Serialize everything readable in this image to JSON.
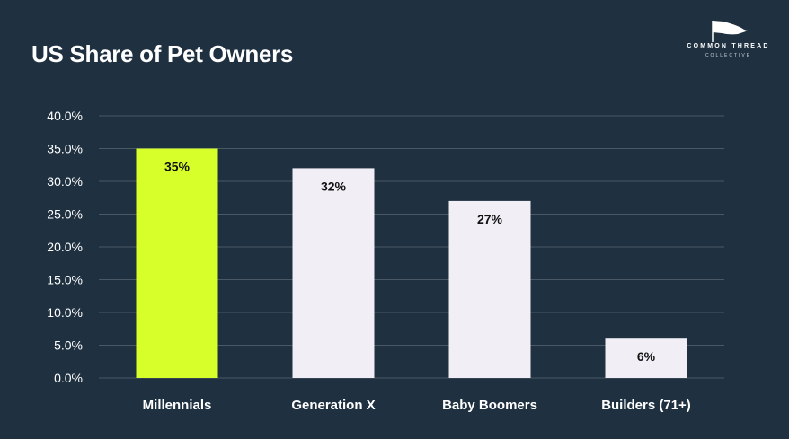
{
  "header": {
    "title": "US Share of Pet Owners"
  },
  "logo": {
    "line1": "COMMON THREAD",
    "line2": "COLLECTIVE",
    "icon": "flag-icon"
  },
  "colors": {
    "background": "#1f3040",
    "highlight_bar": "#d7ff2a",
    "default_bar": "#f1eff5",
    "gridline": "#4a5866",
    "axis_text": "#ffffff",
    "data_label_text": "#111111"
  },
  "chart_data": {
    "type": "bar",
    "title": "US Share of Pet Owners",
    "xlabel": "",
    "ylabel": "",
    "categories": [
      "Millennials",
      "Generation X",
      "Baby Boomers",
      "Builders (71+)"
    ],
    "values": [
      35,
      32,
      27,
      6
    ],
    "data_labels": [
      "35%",
      "32%",
      "27%",
      "6%"
    ],
    "highlight_index": 0,
    "ylim": [
      0,
      40
    ],
    "yticks": [
      0,
      5,
      10,
      15,
      20,
      25,
      30,
      35,
      40
    ],
    "ytick_labels": [
      "0.0%",
      "5.0%",
      "10.0%",
      "15.0%",
      "20.0%",
      "25.0%",
      "30.0%",
      "35.0%",
      "40.0%"
    ],
    "grid": true,
    "legend": "none"
  }
}
